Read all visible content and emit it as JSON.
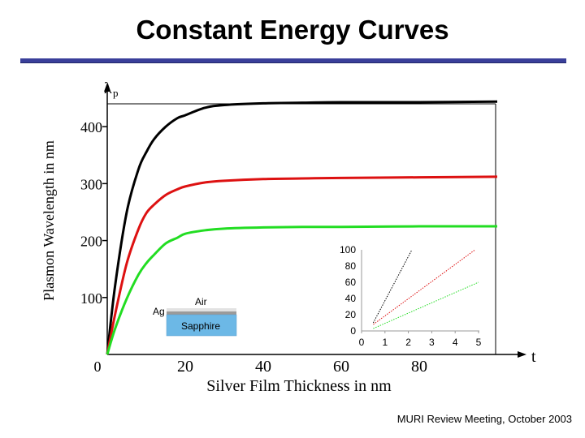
{
  "slide": {
    "title": "Constant Energy Curves",
    "footer": "MURI Review Meeting, October 2003"
  },
  "chart_data": [
    {
      "type": "line",
      "title": "",
      "ylabel": "Plasmon Wavelength in nm",
      "y_axis_symbol": "λ",
      "y_axis_symbol_sub": "p",
      "xlabel": "Silver Film Thickness in nm",
      "x_axis_symbol": "t",
      "x_ticks": [
        20,
        40,
        60,
        80
      ],
      "y_ticks": [
        100,
        200,
        300,
        400
      ],
      "origin_label": "0",
      "xlim": [
        0,
        100
      ],
      "ylim": [
        0,
        470
      ],
      "series": [
        {
          "color": "#000000",
          "x": [
            0,
            2,
            5,
            8,
            10,
            12,
            15,
            18,
            20,
            25,
            30,
            40,
            50,
            60,
            80,
            100
          ],
          "y": [
            0,
            120,
            250,
            325,
            355,
            378,
            400,
            415,
            420,
            433,
            438,
            441,
            442,
            443,
            443,
            444
          ]
        },
        {
          "color": "#dd1111",
          "x": [
            0,
            2,
            5,
            8,
            10,
            12,
            15,
            18,
            20,
            25,
            30,
            40,
            50,
            60,
            80,
            100
          ],
          "y": [
            0,
            70,
            160,
            220,
            248,
            263,
            280,
            290,
            295,
            302,
            305,
            308,
            309,
            310,
            311,
            312
          ]
        },
        {
          "color": "#22dd22",
          "x": [
            0,
            2,
            5,
            8,
            10,
            12,
            15,
            18,
            20,
            25,
            30,
            40,
            50,
            60,
            80,
            100
          ],
          "y": [
            0,
            45,
            98,
            140,
            160,
            175,
            195,
            205,
            212,
            218,
            221,
            223,
            224,
            224,
            225,
            225
          ]
        }
      ],
      "annotations": [
        "Air",
        "Ag",
        "Sapphire"
      ],
      "colors": {
        "air_layer": "#e2e2e2",
        "ag_layer": "#9a9a9a",
        "sapphire_layer": "#6cb8e6"
      }
    },
    {
      "type": "line",
      "title": "",
      "x_ticks": [
        0,
        1,
        2,
        3,
        4,
        5
      ],
      "y_ticks": [
        0,
        20,
        40,
        60,
        80,
        100
      ],
      "xlim": [
        0,
        5
      ],
      "ylim": [
        0,
        100
      ],
      "series": [
        {
          "color": "#000000",
          "x": [
            0.5,
            2.15
          ],
          "y": [
            10,
            100
          ],
          "style": "dotted"
        },
        {
          "color": "#dd1111",
          "x": [
            0.5,
            4.85
          ],
          "y": [
            8,
            100
          ],
          "style": "dotted"
        },
        {
          "color": "#22dd22",
          "x": [
            0.5,
            5
          ],
          "y": [
            3,
            60
          ],
          "style": "dotted"
        }
      ]
    }
  ]
}
